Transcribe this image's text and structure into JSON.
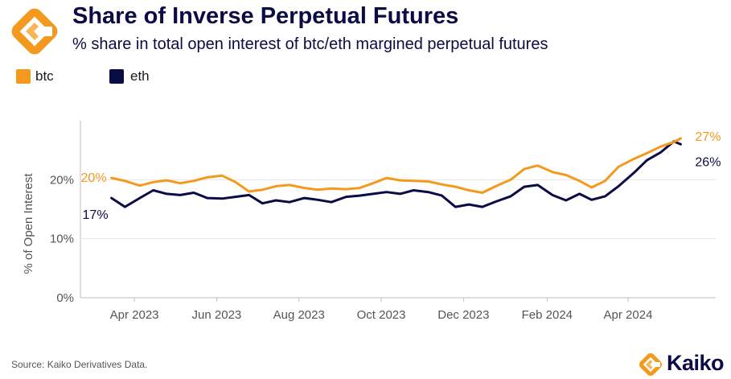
{
  "header": {
    "title": "Share of Inverse Perpetual Futures",
    "subtitle": "% share in total open interest of btc/eth margined perpetual futures"
  },
  "legend": [
    {
      "label": "btc",
      "color": "#f39a1e"
    },
    {
      "label": "eth",
      "color": "#0b0b45"
    }
  ],
  "footer": {
    "source": "Source: Kaiko Derivatives Data.",
    "brand": "Kaiko"
  },
  "logo": {
    "icon": "kaiko-logo-icon",
    "colors": [
      "#f39a1e",
      "#f7b55a"
    ]
  },
  "chart_data": {
    "type": "line",
    "title": "",
    "ylabel": "% of Open Interest",
    "xlabel": "",
    "ylim": [
      0,
      30
    ],
    "xlim": [
      "2023-02-20",
      "2024-06-05"
    ],
    "y_ticks": [
      0,
      10,
      20
    ],
    "y_tick_labels": [
      "0%",
      "10%",
      "20%"
    ],
    "x_ticks": [
      "2023-04-01",
      "2023-06-01",
      "2023-08-01",
      "2023-10-01",
      "2023-12-01",
      "2024-02-01",
      "2024-04-01"
    ],
    "x_tick_labels": [
      "Apr 2023",
      "Jun 2023",
      "Aug 2023",
      "Oct 2023",
      "Dec 2023",
      "Feb 2024",
      "Apr 2024"
    ],
    "grid": {
      "horizontal": true,
      "vertical": false
    },
    "legend_position": "top-left",
    "series": [
      {
        "name": "btc",
        "color": "#f39a1e",
        "start_label": "20%",
        "end_label": "27%",
        "x": [
          "2023-03-15",
          "2023-03-25",
          "2023-04-05",
          "2023-04-15",
          "2023-04-25",
          "2023-05-05",
          "2023-05-15",
          "2023-05-25",
          "2023-06-05",
          "2023-06-15",
          "2023-06-25",
          "2023-07-05",
          "2023-07-15",
          "2023-07-25",
          "2023-08-05",
          "2023-08-15",
          "2023-08-25",
          "2023-09-05",
          "2023-09-15",
          "2023-09-25",
          "2023-10-05",
          "2023-10-15",
          "2023-10-25",
          "2023-11-05",
          "2023-11-15",
          "2023-11-25",
          "2023-12-05",
          "2023-12-15",
          "2023-12-25",
          "2024-01-05",
          "2024-01-15",
          "2024-01-25",
          "2024-02-05",
          "2024-02-15",
          "2024-02-25",
          "2024-03-05",
          "2024-03-15",
          "2024-03-25",
          "2024-04-05",
          "2024-04-15",
          "2024-04-25",
          "2024-05-05",
          "2024-05-10"
        ],
        "y": [
          20.3,
          19.8,
          19.0,
          19.6,
          19.9,
          19.4,
          19.8,
          20.4,
          20.7,
          19.6,
          18.0,
          18.3,
          18.9,
          19.1,
          18.6,
          18.3,
          18.5,
          18.4,
          18.6,
          19.4,
          20.3,
          19.9,
          19.8,
          19.7,
          19.2,
          18.8,
          18.2,
          17.8,
          18.9,
          20.0,
          21.8,
          22.4,
          21.3,
          20.8,
          19.8,
          18.7,
          19.8,
          22.2,
          23.5,
          24.5,
          25.6,
          26.4,
          27.0
        ]
      },
      {
        "name": "eth",
        "color": "#0b0b45",
        "start_label": "17%",
        "end_label": "26%",
        "x": [
          "2023-03-15",
          "2023-03-25",
          "2023-04-05",
          "2023-04-15",
          "2023-04-25",
          "2023-05-05",
          "2023-05-15",
          "2023-05-25",
          "2023-06-05",
          "2023-06-15",
          "2023-06-25",
          "2023-07-05",
          "2023-07-15",
          "2023-07-25",
          "2023-08-05",
          "2023-08-15",
          "2023-08-25",
          "2023-09-05",
          "2023-09-15",
          "2023-09-25",
          "2023-10-05",
          "2023-10-15",
          "2023-10-25",
          "2023-11-05",
          "2023-11-15",
          "2023-11-25",
          "2023-12-05",
          "2023-12-15",
          "2023-12-25",
          "2024-01-05",
          "2024-01-15",
          "2024-01-25",
          "2024-02-05",
          "2024-02-15",
          "2024-02-25",
          "2024-03-05",
          "2024-03-15",
          "2024-03-25",
          "2024-04-05",
          "2024-04-15",
          "2024-04-25",
          "2024-05-05",
          "2024-05-10"
        ],
        "y": [
          16.9,
          15.4,
          16.9,
          18.2,
          17.6,
          17.4,
          17.8,
          16.9,
          16.8,
          17.1,
          17.4,
          16.0,
          16.5,
          16.2,
          16.9,
          16.6,
          16.2,
          17.1,
          17.3,
          17.6,
          17.9,
          17.6,
          18.2,
          17.9,
          17.3,
          15.4,
          15.8,
          15.4,
          16.3,
          17.2,
          18.8,
          19.1,
          17.4,
          16.5,
          17.6,
          16.6,
          17.2,
          18.9,
          21.1,
          23.3,
          24.6,
          26.5,
          26.0
        ]
      }
    ]
  }
}
